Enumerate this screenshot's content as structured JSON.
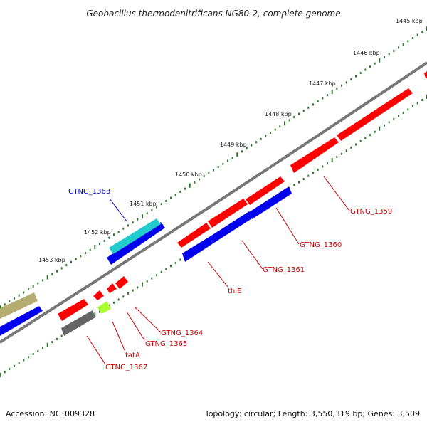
{
  "title": "Geobacillus thermodenitrificans NG80-2, complete genome",
  "footer": {
    "accession": "Accession: NC_009328",
    "summary": "Topology: circular; Length: 3,550,319 bp; Genes: 3,509"
  },
  "ticks": [
    "1445 kbp",
    "1446 kbp",
    "1447 kbp",
    "1448 kbp",
    "1449 kbp",
    "1450 kbp",
    "1451 kbp",
    "1452 kbp",
    "1453 kbp"
  ],
  "gene_labels": [
    "GTNG_1359",
    "GTNG_1360",
    "GTNG_1361",
    "thiE",
    "GTNG_1363",
    "GTNG_1364",
    "GTNG_1365",
    "tatA",
    "GTNG_1367"
  ],
  "colors": {
    "red": "#ff0000",
    "blue": "#0000ee",
    "cyan": "#22cccc",
    "olive": "#b5ad72",
    "gray": "#666666",
    "lime": "#aaff33",
    "backbone": "#777777",
    "tick": "#2a7a2a"
  }
}
